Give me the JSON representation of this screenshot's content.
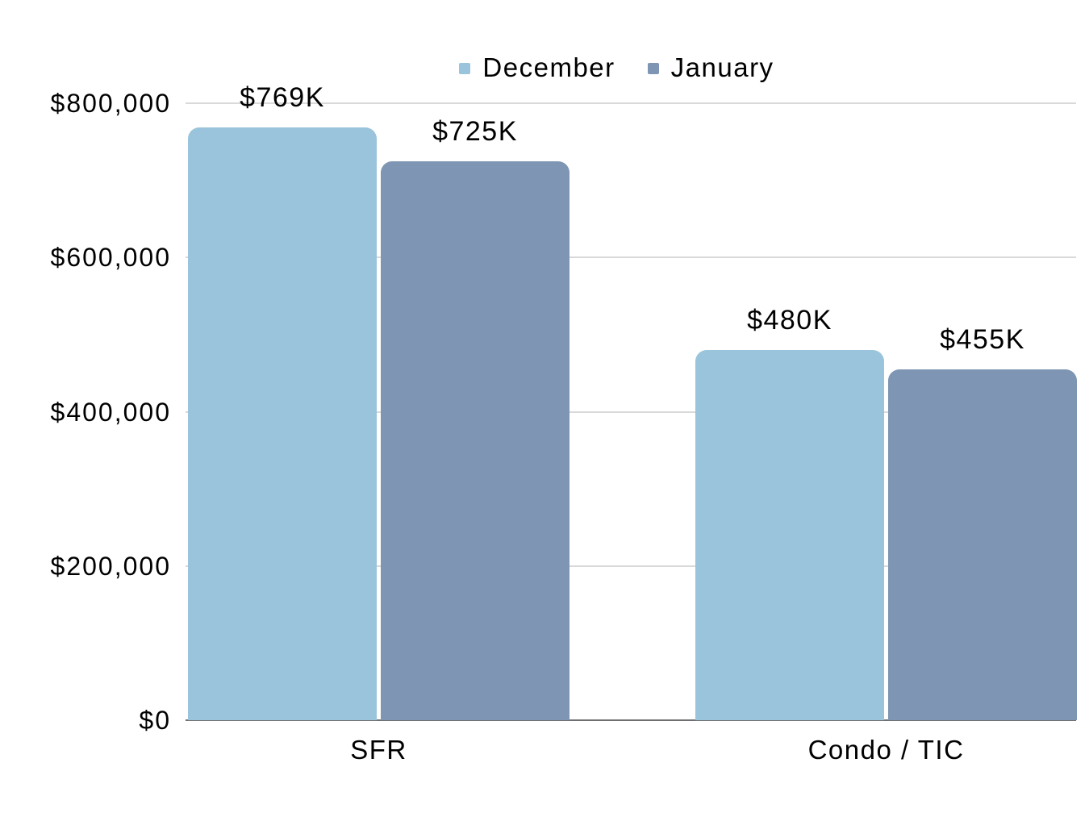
{
  "chart_data": {
    "type": "bar",
    "title": "",
    "legend_position": "top",
    "grid": true,
    "categories": [
      "SFR",
      "Condo / TIC"
    ],
    "series": [
      {
        "name": "December",
        "color": "#9ac4db",
        "values": [
          769000,
          480000
        ],
        "labels": [
          "$769K",
          "$480K"
        ]
      },
      {
        "name": "January",
        "color": "#7e96b3",
        "values": [
          725000,
          455000
        ],
        "labels": [
          "$725K",
          "$455K"
        ]
      }
    ],
    "y_axis": {
      "min": 0,
      "max": 800000,
      "ticks": [
        {
          "value": 0,
          "label": "$0"
        },
        {
          "value": 200000,
          "label": "$200,000"
        },
        {
          "value": 400000,
          "label": "$400,000"
        },
        {
          "value": 600000,
          "label": "$600,000"
        },
        {
          "value": 800000,
          "label": "$800,000"
        }
      ]
    },
    "colors": {
      "gridline": "#d9d9d9",
      "axis_line": "#6f6f6f",
      "text": "#000000",
      "background": "#ffffff"
    }
  }
}
